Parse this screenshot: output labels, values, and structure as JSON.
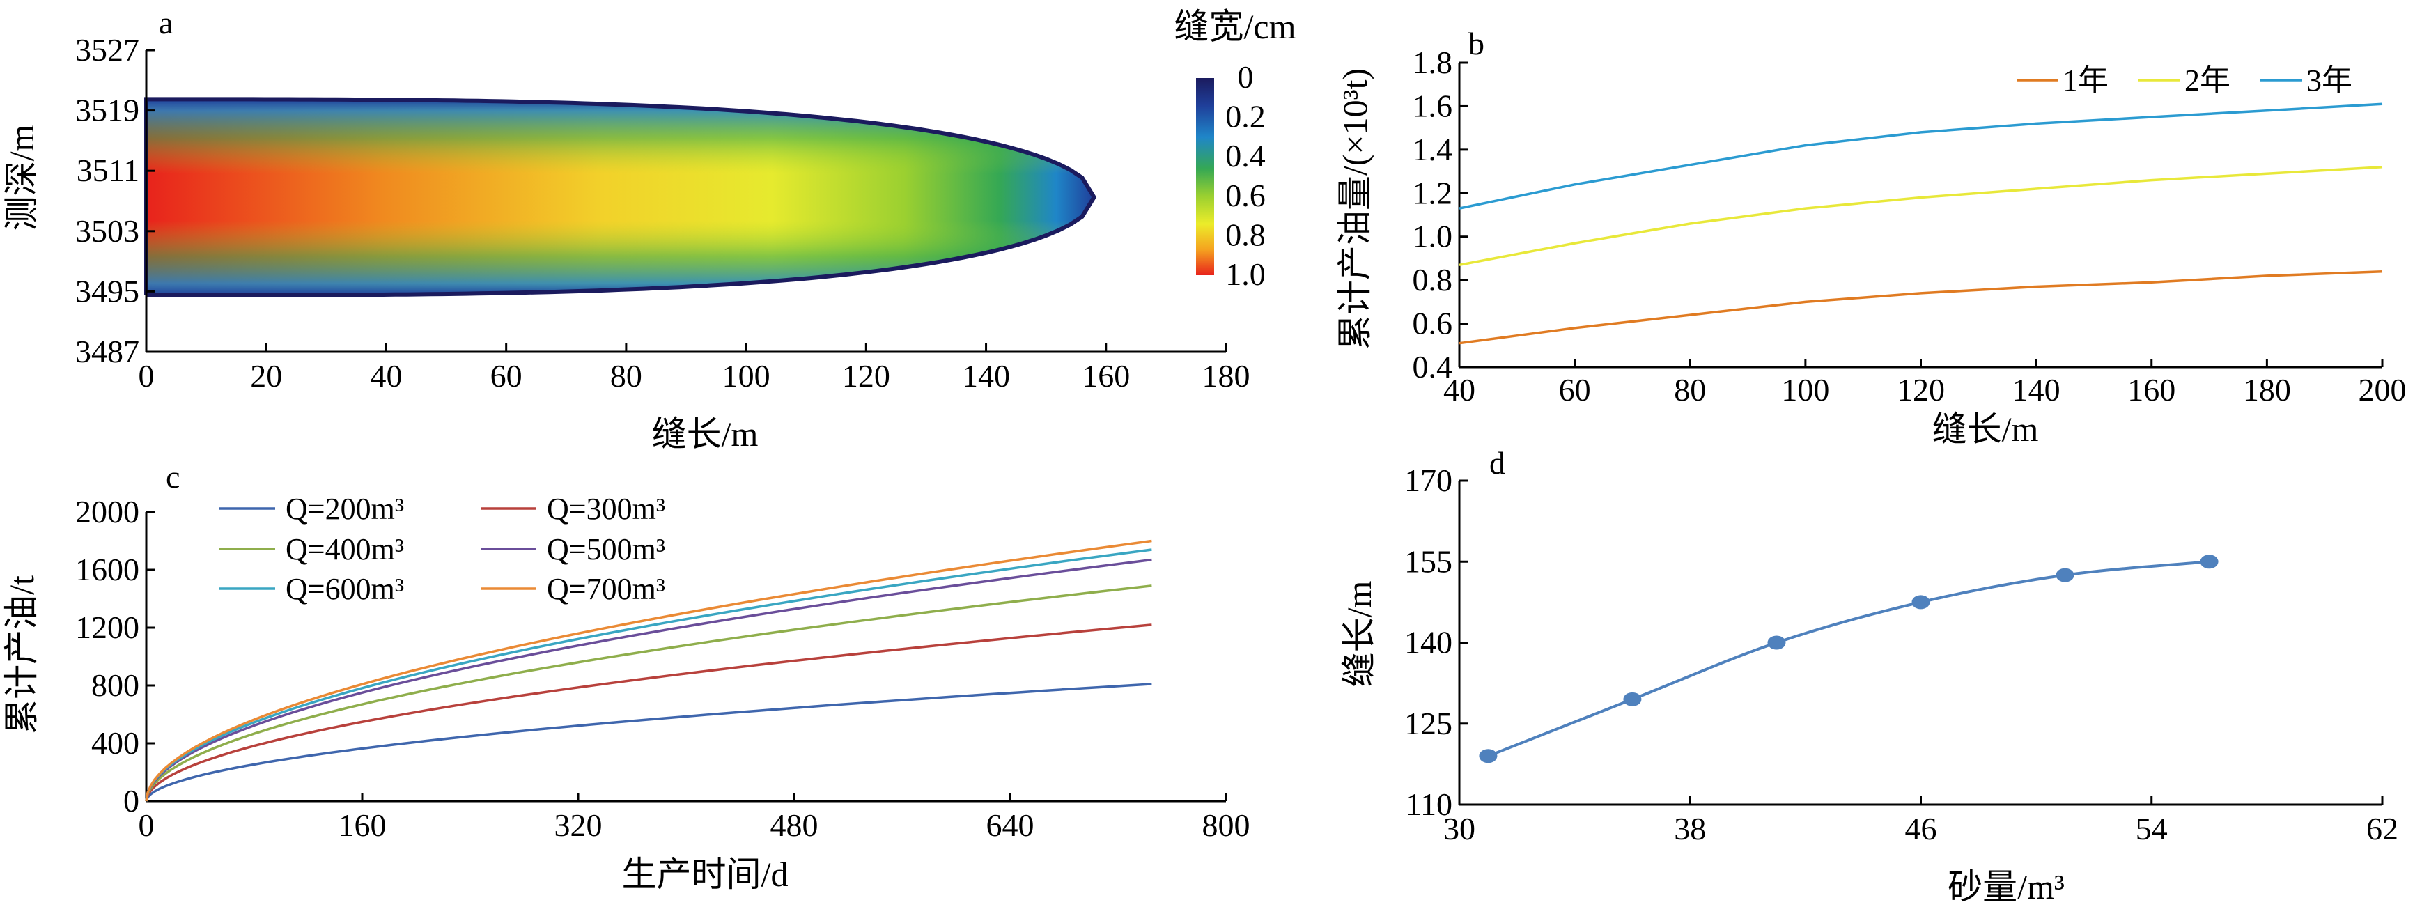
{
  "chart_data": [
    {
      "panel": "a",
      "type": "heatmap",
      "xlabel": "缝长/m",
      "ylabel": "测深/m",
      "xlim": [
        0,
        180
      ],
      "ylim": [
        3487,
        3527
      ],
      "xticks": [
        0,
        20,
        40,
        60,
        80,
        100,
        120,
        140,
        160,
        180
      ],
      "yticks": [
        3487,
        3495,
        3503,
        3511,
        3519,
        3527
      ],
      "colorbar": {
        "title": "缝宽/cm",
        "ticks": [
          "0",
          "0.2",
          "0.4",
          "0.6",
          "0.8",
          "1.0"
        ],
        "range": [
          0,
          1.0
        ],
        "colors": [
          "#1b1b5e",
          "#1f3f9a",
          "#1f86c8",
          "#35a854",
          "#9bd030",
          "#ecec2a",
          "#f5a31f",
          "#e8231c"
        ]
      },
      "fracture": {
        "length_m": 158,
        "top_depth_m": 3494.5,
        "bottom_depth_m": 3520.5,
        "center_depth_m": 3507.5,
        "max_width_cm": 1.0
      }
    },
    {
      "panel": "b",
      "type": "line",
      "xlabel": "缝长/m",
      "ylabel": "累计产油量/(×10³t)",
      "xlim": [
        40,
        200
      ],
      "ylim": [
        0.4,
        1.8
      ],
      "xticks": [
        40,
        60,
        80,
        100,
        120,
        140,
        160,
        180,
        200
      ],
      "yticks": [
        "0.4",
        "0.6",
        "0.8",
        "1.0",
        "1.2",
        "1.4",
        "1.6",
        "1.8"
      ],
      "legend_position": "top-right",
      "x": [
        40,
        60,
        80,
        100,
        120,
        140,
        160,
        180,
        200
      ],
      "series": [
        {
          "name": "1年",
          "color": "#e07b22",
          "values": [
            0.51,
            0.58,
            0.64,
            0.7,
            0.74,
            0.77,
            0.79,
            0.82,
            0.84
          ]
        },
        {
          "name": "2年",
          "color": "#e8e83a",
          "values": [
            0.87,
            0.97,
            1.06,
            1.13,
            1.18,
            1.22,
            1.26,
            1.29,
            1.32
          ]
        },
        {
          "name": "3年",
          "color": "#2b9bd1",
          "values": [
            1.13,
            1.24,
            1.33,
            1.42,
            1.48,
            1.52,
            1.55,
            1.58,
            1.61
          ]
        }
      ]
    },
    {
      "panel": "c",
      "type": "line",
      "xlabel": "生产时间/d",
      "ylabel": "累计产油/t",
      "xlim": [
        0,
        800
      ],
      "ylim": [
        0,
        2000
      ],
      "xticks": [
        0,
        160,
        320,
        480,
        640,
        800
      ],
      "yticks": [
        0,
        400,
        800,
        1200,
        1600,
        2000
      ],
      "legend_position": "top-left",
      "x_end": 745,
      "series": [
        {
          "name": "Q=200m³",
          "color": "#3f66ad",
          "value_at_end": 810
        },
        {
          "name": "Q=300m³",
          "color": "#b8413c",
          "value_at_end": 1220
        },
        {
          "name": "Q=400m³",
          "color": "#8fae4c",
          "value_at_end": 1490
        },
        {
          "name": "Q=500m³",
          "color": "#6a4e9a",
          "value_at_end": 1670
        },
        {
          "name": "Q=600m³",
          "color": "#3aa6c2",
          "value_at_end": 1740
        },
        {
          "name": "Q=700m³",
          "color": "#ea8a35",
          "value_at_end": 1800
        }
      ]
    },
    {
      "panel": "d",
      "type": "line",
      "xlabel": "砂量/m³",
      "ylabel": "缝长/m",
      "xlim": [
        30,
        62
      ],
      "ylim": [
        110,
        170
      ],
      "xticks": [
        30,
        38,
        46,
        54,
        62
      ],
      "yticks": [
        110,
        125,
        140,
        155,
        170
      ],
      "color": "#4f81bd",
      "x": [
        31,
        36,
        41,
        46,
        51,
        56
      ],
      "values": [
        119,
        129.5,
        140,
        147.5,
        152.5,
        155
      ]
    }
  ]
}
